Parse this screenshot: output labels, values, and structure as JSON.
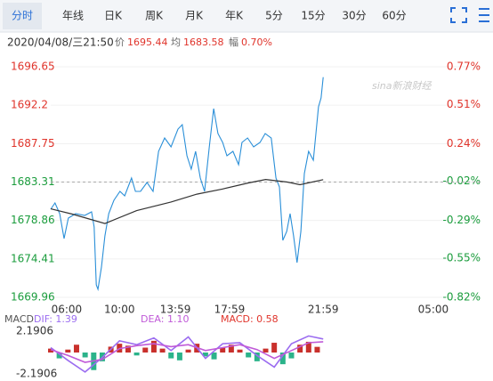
{
  "tabs": [
    "分时",
    "年线",
    "日K",
    "周K",
    "月K",
    "年K",
    "5分",
    "15分",
    "30分",
    "60分"
  ],
  "selected_tab": 0,
  "info": {
    "datetime": "2020/04/08/三21:50",
    "price_label": "价",
    "price": "1695.44",
    "avg_label": "均",
    "avg": "1683.58",
    "amp_label": "幅",
    "amp": "0.70%"
  },
  "watermark": "sina新浪财经",
  "chart_data": [
    {
      "type": "line",
      "xlim": [
        0,
        100
      ],
      "xticks": [
        {
          "value": 3.7,
          "label": "06:00"
        },
        {
          "value": 16,
          "label": "10:00"
        },
        {
          "value": 29,
          "label": "13:59"
        },
        {
          "value": 41.6,
          "label": "17:59"
        },
        {
          "value": 63.4,
          "label": "21:59"
        },
        {
          "value": 89,
          "label": "05:00"
        }
      ],
      "ylim": [
        1669.96,
        1696.65
      ],
      "yticks": [
        1696.65,
        1692.2,
        1687.75,
        1683.31,
        1678.86,
        1674.41,
        1669.96
      ],
      "y2lim": [
        -0.82,
        0.77
      ],
      "y2ticks": [
        {
          "value": 0.77,
          "label": "0.77%"
        },
        {
          "value": 0.51,
          "label": "0.51%"
        },
        {
          "value": 0.24,
          "label": "0.24%"
        },
        {
          "value": -0.02,
          "label": "-0.02%"
        },
        {
          "value": -0.29,
          "label": "-0.29%"
        },
        {
          "value": -0.55,
          "label": "-0.55%"
        },
        {
          "value": -0.82,
          "label": "-0.82%"
        }
      ],
      "reference_line": 1683.31,
      "up_color": "#e0342b",
      "down_color": "#1a9c3c",
      "series": [
        {
          "color": "#2a8fd8",
          "x": [
            0,
            1.0,
            2.1,
            3.1,
            4.1,
            5.8,
            7.9,
            9.5,
            10.1,
            10.6,
            11.0,
            11.8,
            12.6,
            13.5,
            14.7,
            16.1,
            17.2,
            18.8,
            19.7,
            20.9,
            22.4,
            23.8,
            25.1,
            26.5,
            28.0,
            29.6,
            30.6,
            31.7,
            32.7,
            33.7,
            34.8,
            35.8,
            36.9,
            37.9,
            38.9,
            40.0,
            41.0,
            42.4,
            43.7,
            44.5,
            45.8,
            47.2,
            48.7,
            49.9,
            51.3,
            52.4,
            53.2,
            54.0,
            54.9,
            55.7,
            56.5,
            57.3,
            58.2,
            59.0,
            60.0,
            61.1,
            61.7,
            62.3,
            62.9,
            63.4
          ],
          "values": [
            1680.16,
            1680.88,
            1679.65,
            1676.76,
            1679.13,
            1679.65,
            1679.44,
            1679.85,
            1678.1,
            1671.4,
            1670.89,
            1673.46,
            1677.07,
            1679.65,
            1681.19,
            1682.22,
            1681.71,
            1683.77,
            1682.22,
            1682.22,
            1683.25,
            1682.22,
            1686.86,
            1688.41,
            1687.38,
            1689.44,
            1689.95,
            1686.34,
            1684.8,
            1686.86,
            1683.77,
            1682.22,
            1687.38,
            1691.81,
            1688.92,
            1687.89,
            1686.34,
            1686.86,
            1685.31,
            1687.89,
            1688.41,
            1687.38,
            1687.89,
            1688.92,
            1688.41,
            1683.77,
            1682.74,
            1676.56,
            1677.59,
            1679.65,
            1677.07,
            1673.98,
            1677.59,
            1684.28,
            1686.86,
            1685.83,
            1688.92,
            1692.01,
            1693.04,
            1695.44
          ]
        },
        {
          "color": "#333333",
          "x": [
            0,
            5,
            12.6,
            20,
            28,
            34,
            40,
            46,
            50,
            55,
            58,
            63.4
          ],
          "values": [
            1680.2,
            1679.6,
            1678.5,
            1680.0,
            1681.0,
            1681.9,
            1682.5,
            1683.2,
            1683.6,
            1683.3,
            1683.0,
            1683.58
          ]
        }
      ]
    },
    {
      "type": "macd",
      "title": "MACD",
      "xlim": [
        0,
        100
      ],
      "ylim": [
        -2.1906,
        2.1906
      ],
      "yticks": [
        2.1906,
        -2.1906
      ],
      "up_color": "#c9302c",
      "down_color": "#2bb38a",
      "series": [
        {
          "label": "DIF: 1.39",
          "color": "#9b6cf0",
          "x": [
            0,
            4,
            8,
            12,
            16,
            20,
            24,
            28,
            32,
            36,
            40,
            44,
            48,
            52,
            56,
            60,
            63.4
          ],
          "values": [
            0.5,
            -0.8,
            -2.0,
            -0.5,
            1.2,
            0.8,
            1.5,
            0.2,
            1.6,
            -0.6,
            0.9,
            1.0,
            -0.3,
            -1.5,
            0.9,
            1.7,
            1.39
          ]
        },
        {
          "label": "DEA: 1.10",
          "color": "#c05ad8",
          "x": [
            0,
            4,
            8,
            12,
            16,
            20,
            24,
            28,
            32,
            36,
            40,
            44,
            48,
            52,
            56,
            60,
            63.4
          ],
          "values": [
            0.3,
            -0.3,
            -1.0,
            -0.7,
            0.4,
            0.7,
            0.9,
            0.6,
            0.8,
            0.2,
            0.5,
            0.8,
            0.3,
            -0.6,
            0.2,
            1.0,
            1.1
          ]
        },
        {
          "label": "MACD: 0.58",
          "color": "#e0342b",
          "x": [
            0,
            2,
            4,
            6,
            8,
            10,
            12,
            14,
            16,
            18,
            20,
            22,
            24,
            26,
            28,
            30,
            32,
            34,
            36,
            38,
            40,
            42,
            44,
            46,
            48,
            50,
            52,
            54,
            56,
            58,
            60,
            62
          ],
          "values": [
            0.4,
            -0.6,
            0.3,
            0.8,
            -0.5,
            -1.8,
            -0.9,
            0.6,
            0.9,
            0.7,
            -0.3,
            0.5,
            1.2,
            0.4,
            -0.6,
            -0.8,
            0.3,
            0.9,
            -0.4,
            -0.7,
            0.5,
            0.8,
            0.3,
            -0.5,
            -0.9,
            0.4,
            1.0,
            -1.2,
            -0.6,
            0.8,
            1.1,
            0.58
          ]
        }
      ]
    }
  ]
}
